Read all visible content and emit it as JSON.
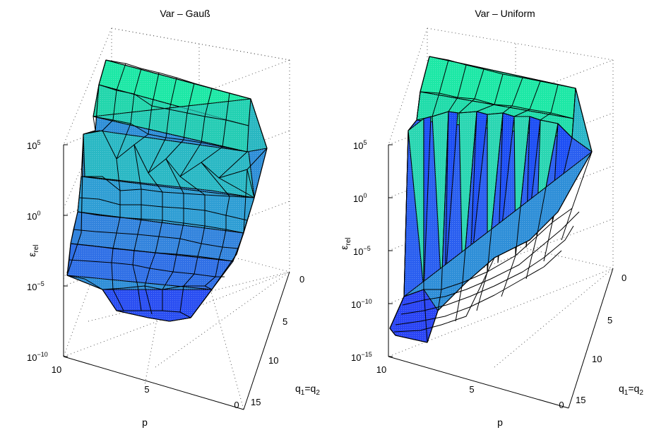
{
  "figure": {
    "colors": {
      "surface_low": "#1a3cff",
      "surface_mid": "#2aa8d8",
      "surface_high": "#14f2a0",
      "edge": "#000000",
      "grid": "#555555"
    }
  },
  "chart_data": [
    {
      "type": "surface",
      "title": "Var – Gauß",
      "zlabel_main": "ε",
      "zlabel_sub": "rel",
      "xlabel": "p",
      "ylabel_main": "q",
      "ylabel_sub": "1",
      "ylabel_eq": "=q",
      "ylabel_sub2": "2",
      "z_scale": "log",
      "zlim_exp": [
        -10,
        5
      ],
      "z_ticks": [
        {
          "base": "10",
          "exp": "5",
          "v": 5
        },
        {
          "base": "10",
          "exp": "0",
          "v": 0
        },
        {
          "base": "10",
          "exp": "−5",
          "v": -5
        },
        {
          "base": "10",
          "exp": "−10",
          "v": -10
        }
      ],
      "p_ticks": [
        "10",
        "5",
        "0"
      ],
      "q_ticks": [
        "0",
        "5",
        "10",
        "15"
      ],
      "grid": true,
      "p_values": [
        0,
        1,
        2,
        3,
        4,
        5,
        6,
        7,
        8,
        9,
        10
      ],
      "q_values": [
        0,
        1,
        2,
        3,
        4,
        5,
        6,
        7,
        8,
        9,
        10,
        11,
        12,
        13,
        14,
        15
      ],
      "log10_eps_rel": [
        [
          4.0,
          3.5,
          2.5,
          1.0,
          -0.5,
          -1.5,
          -2.5,
          -3.5,
          -4.5,
          -5.5,
          -6.5,
          -7.0,
          -7.5,
          -7.8,
          -8.0,
          -8.0
        ],
        [
          5.0,
          4.5,
          3.5,
          1.5,
          -0.5,
          -1.5,
          -2.5,
          -3.5,
          -4.5,
          -5.5,
          -6.5,
          -7.0,
          -7.5,
          -7.8,
          -8.0,
          -7.8
        ],
        [
          6.5,
          6.0,
          4.5,
          2.5,
          0.0,
          -1.5,
          -2.5,
          -3.5,
          -4.5,
          -5.5,
          -6.0,
          -6.5,
          -7.0,
          -7.5,
          -7.8,
          -7.5
        ],
        [
          8.0,
          7.5,
          6.0,
          3.0,
          0.5,
          -1.0,
          -2.0,
          -3.0,
          -4.0,
          -5.0,
          -5.5,
          -6.0,
          -6.5,
          -7.0,
          -7.5,
          -7.2
        ],
        [
          9.0,
          8.5,
          6.5,
          3.5,
          1.5,
          0.0,
          -1.0,
          -2.0,
          -3.0,
          -4.0,
          -5.0,
          -5.5,
          -6.0,
          -6.5,
          -7.0,
          -7.0
        ],
        [
          9.5,
          9.0,
          7.5,
          5.0,
          2.5,
          0.5,
          -0.5,
          -1.5,
          -2.5,
          -3.5,
          -4.5,
          -5.0,
          -5.5,
          -6.0,
          -6.5,
          -6.5
        ],
        [
          10.0,
          9.5,
          8.0,
          5.5,
          3.0,
          1.0,
          0.0,
          -1.0,
          -2.0,
          -3.0,
          -4.0,
          -4.5,
          -5.0,
          -5.5,
          -6.0,
          -6.0
        ],
        [
          10.5,
          10.0,
          8.5,
          6.5,
          4.0,
          2.0,
          0.5,
          -0.5,
          -1.5,
          -2.5,
          -3.5,
          -4.0,
          -4.5,
          -5.0,
          -5.5,
          -5.5
        ],
        [
          11.0,
          10.5,
          9.0,
          7.0,
          4.5,
          2.5,
          1.0,
          0.0,
          -1.0,
          -2.0,
          -3.0,
          -3.5,
          -4.0,
          -4.5,
          -5.0,
          -5.0
        ],
        [
          11.5,
          11.0,
          9.5,
          7.5,
          5.5,
          3.0,
          1.5,
          0.5,
          -0.5,
          -1.5,
          -2.5,
          -3.0,
          -3.5,
          -4.0,
          -4.5,
          -4.5
        ],
        [
          12.0,
          11.5,
          10.0,
          8.0,
          6.0,
          4.0,
          2.5,
          1.5,
          0.5,
          -0.5,
          -1.5,
          -2.5,
          -3.0,
          -3.5,
          -4.0,
          -4.0
        ]
      ]
    },
    {
      "type": "surface",
      "title": "Var – Uniform",
      "zlabel_main": "ε",
      "zlabel_sub": "rel",
      "xlabel": "p",
      "ylabel_main": "q",
      "ylabel_sub": "1",
      "ylabel_eq": "=q",
      "ylabel_sub2": "2",
      "z_scale": "log",
      "zlim_exp": [
        -15,
        5
      ],
      "z_ticks": [
        {
          "base": "10",
          "exp": "5",
          "v": 5
        },
        {
          "base": "10",
          "exp": "0",
          "v": 0
        },
        {
          "base": "10",
          "exp": "−5",
          "v": -5
        },
        {
          "base": "10",
          "exp": "−10",
          "v": -10
        },
        {
          "base": "10",
          "exp": "−15",
          "v": -15
        }
      ],
      "p_ticks": [
        "10",
        "5",
        "0"
      ],
      "q_ticks": [
        "0",
        "5",
        "10",
        "15"
      ],
      "grid": true,
      "p_values": [
        0,
        1,
        2,
        3,
        4,
        5,
        6,
        7,
        8,
        9,
        10
      ],
      "q_values": [
        0,
        1,
        2,
        3,
        4,
        5,
        6,
        7,
        8,
        9,
        10,
        11,
        12,
        13,
        14,
        15
      ],
      "log10_eps_rel": [
        [
          4.0,
          1.0,
          -2.0,
          -4.5,
          -7.0,
          -9.0,
          -10.5,
          -11.5,
          -12.5,
          -13.0,
          -13.5,
          -14.0,
          -14.2,
          -14.5,
          -14.8,
          -15.0
        ],
        [
          6.0,
          3.0,
          0.0,
          -3.0,
          -5.5,
          -7.5,
          -9.0,
          -10.5,
          -11.5,
          -12.5,
          -13.0,
          -13.5,
          -14.0,
          -14.3,
          -14.5,
          -14.8
        ],
        [
          8.0,
          5.0,
          1.5,
          -2.0,
          -4.5,
          -6.5,
          -8.0,
          -9.5,
          -10.5,
          -11.5,
          -12.5,
          -13.0,
          -13.5,
          -14.0,
          -14.2,
          -14.5
        ],
        [
          9.0,
          6.0,
          3.0,
          -1.0,
          -3.5,
          -5.5,
          -7.0,
          -8.5,
          -10.0,
          -11.0,
          -12.0,
          -12.5,
          -13.0,
          -13.5,
          -14.0,
          -14.2
        ],
        [
          10.0,
          7.0,
          4.0,
          0.0,
          -2.5,
          -4.5,
          -6.5,
          -8.0,
          -9.5,
          -10.5,
          -11.5,
          -12.0,
          -12.5,
          -13.0,
          -13.5,
          -13.8
        ],
        [
          10.5,
          7.5,
          4.5,
          1.0,
          -1.5,
          -4.0,
          -6.0,
          -7.5,
          -9.0,
          -10.0,
          -11.0,
          -11.5,
          -12.0,
          -12.5,
          -13.0,
          -13.5
        ],
        [
          11.0,
          8.0,
          5.0,
          1.5,
          -1.0,
          -3.5,
          -5.5,
          -7.0,
          -8.5,
          -9.5,
          -10.5,
          -11.0,
          -11.5,
          -12.0,
          -12.5,
          -13.0
        ],
        [
          11.5,
          8.5,
          5.5,
          2.0,
          -0.5,
          -3.0,
          -5.0,
          -6.5,
          -8.0,
          -9.0,
          -10.0,
          -10.5,
          -11.0,
          -11.5,
          -12.0,
          -12.5
        ],
        [
          12.0,
          9.0,
          6.0,
          2.5,
          0.0,
          -2.5,
          -4.5,
          -6.0,
          -7.5,
          -8.5,
          -9.5,
          -10.0,
          -10.5,
          -11.0,
          -11.5,
          -12.0
        ],
        [
          12.5,
          9.5,
          6.5,
          3.0,
          0.5,
          -2.0,
          -4.0,
          -5.5,
          -7.0,
          -8.0,
          -9.0,
          -9.5,
          -10.0,
          -10.5,
          -11.0,
          -11.5
        ],
        [
          13.0,
          10.0,
          7.0,
          3.5,
          1.0,
          -1.5,
          -3.5,
          -5.0,
          -6.5,
          -7.5,
          -8.5,
          -9.0,
          -9.5,
          -10.0,
          -10.5,
          -11.0
        ]
      ]
    }
  ]
}
